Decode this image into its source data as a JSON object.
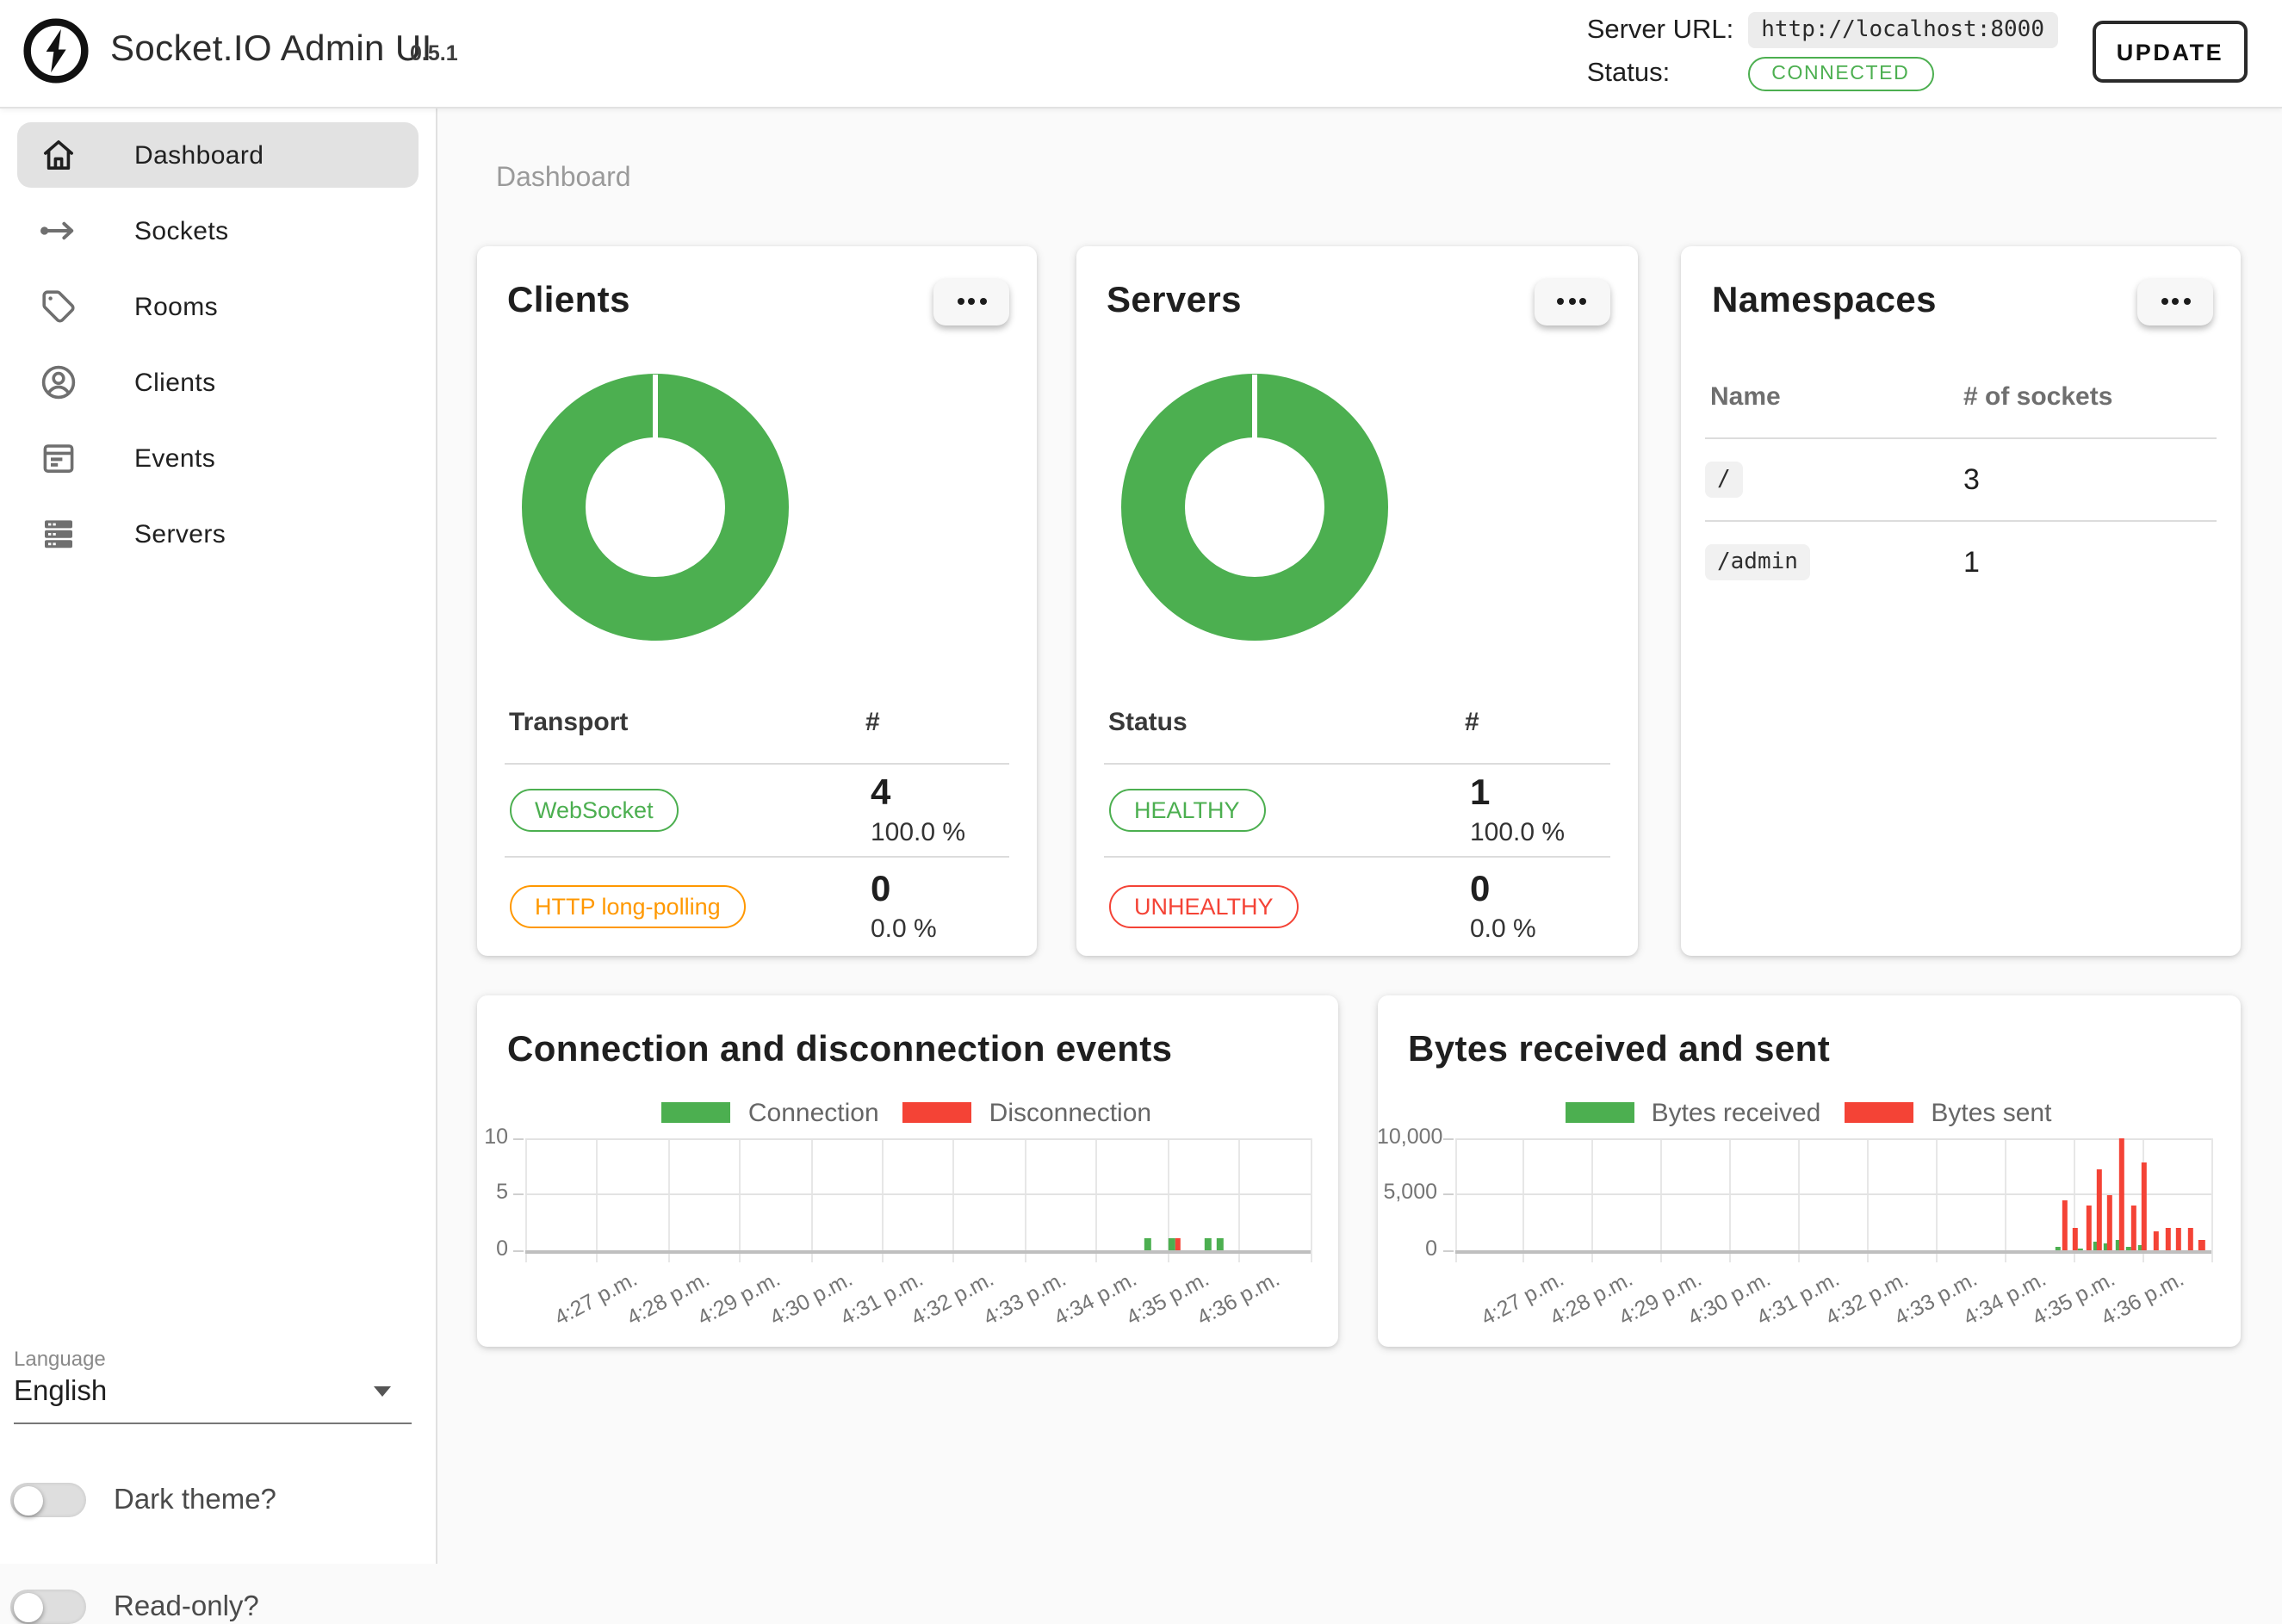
{
  "header": {
    "app_title": "Socket.IO Admin UI",
    "version": "0.5.1",
    "server_url_label": "Server URL:",
    "server_url": "http://localhost:8000",
    "status_label": "Status:",
    "status_value": "CONNECTED",
    "update_button": "UPDATE"
  },
  "sidebar": {
    "items": [
      {
        "label": "Dashboard",
        "icon": "home-icon",
        "active": true
      },
      {
        "label": "Sockets",
        "icon": "socket-arrow-icon",
        "active": false
      },
      {
        "label": "Rooms",
        "icon": "tag-icon",
        "active": false
      },
      {
        "label": "Clients",
        "icon": "person-circle-icon",
        "active": false
      },
      {
        "label": "Events",
        "icon": "calendar-icon",
        "active": false
      },
      {
        "label": "Servers",
        "icon": "server-stack-icon",
        "active": false
      }
    ],
    "language_label": "Language",
    "language_value": "English",
    "dark_theme_label": "Dark theme?",
    "read_only_label": "Read-only?"
  },
  "main": {
    "breadcrumb": "Dashboard"
  },
  "cards": {
    "clients": {
      "title": "Clients",
      "columns": [
        "Transport",
        "#"
      ],
      "rows": [
        {
          "badge": "WebSocket",
          "badge_color": "#4caf50",
          "count": "4",
          "percent": "100.0 %"
        },
        {
          "badge": "HTTP long-polling",
          "badge_color": "#ff9800",
          "count": "0",
          "percent": "0.0 %"
        }
      ]
    },
    "servers": {
      "title": "Servers",
      "columns": [
        "Status",
        "#"
      ],
      "rows": [
        {
          "badge": "HEALTHY",
          "badge_color": "#4caf50",
          "count": "1",
          "percent": "100.0 %"
        },
        {
          "badge": "UNHEALTHY",
          "badge_color": "#f44336",
          "count": "0",
          "percent": "0.0 %"
        }
      ]
    },
    "namespaces": {
      "title": "Namespaces",
      "columns": [
        "Name",
        "# of sockets"
      ],
      "rows": [
        {
          "name": "/",
          "count": "3"
        },
        {
          "name": "/admin",
          "count": "1"
        }
      ]
    }
  },
  "chart_data": [
    {
      "type": "pie",
      "subtype": "donut",
      "title": "Clients",
      "series": [
        {
          "name": "WebSocket",
          "value": 4,
          "percent": 100.0,
          "color": "#4caf50"
        },
        {
          "name": "HTTP long-polling",
          "value": 0,
          "percent": 0.0,
          "color": "#ff9800"
        }
      ]
    },
    {
      "type": "pie",
      "subtype": "donut",
      "title": "Servers",
      "series": [
        {
          "name": "HEALTHY",
          "value": 1,
          "percent": 100.0,
          "color": "#4caf50"
        },
        {
          "name": "UNHEALTHY",
          "value": 0,
          "percent": 0.0,
          "color": "#f44336"
        }
      ]
    },
    {
      "type": "bar",
      "title": "Connection and disconnection events",
      "legend": [
        {
          "label": "Connection",
          "color": "#4caf50"
        },
        {
          "label": "Disconnection",
          "color": "#f44336"
        }
      ],
      "ylim": [
        0,
        10
      ],
      "yticks": [
        {
          "value": 0,
          "label": "0"
        },
        {
          "value": 5,
          "label": "5"
        },
        {
          "value": 10,
          "label": "10"
        }
      ],
      "x_labels": [
        "4:27 p.m.",
        "4:28 p.m.",
        "4:29 p.m.",
        "4:30 p.m.",
        "4:31 p.m.",
        "4:32 p.m.",
        "4:33 p.m.",
        "4:34 p.m.",
        "4:35 p.m.",
        "4:36 p.m."
      ],
      "grid": true,
      "legend_position": "top",
      "bars": [
        {
          "series": "Connection",
          "time": "~4:34:50",
          "value": 1,
          "frac": 0.7934
        },
        {
          "series": "Connection",
          "time": "~4:35:10",
          "value": 1,
          "frac": 0.8242
        },
        {
          "series": "Disconnection",
          "time": "~4:35:15",
          "value": 1,
          "frac": 0.8319
        },
        {
          "series": "Connection",
          "time": "~4:35:40",
          "value": 1,
          "frac": 0.8703
        },
        {
          "series": "Connection",
          "time": "~4:35:50",
          "value": 1,
          "frac": 0.8857
        }
      ]
    },
    {
      "type": "bar",
      "title": "Bytes received and sent",
      "legend": [
        {
          "label": "Bytes received",
          "color": "#4caf50"
        },
        {
          "label": "Bytes sent",
          "color": "#f44336"
        }
      ],
      "ylim": [
        0,
        10000
      ],
      "yticks": [
        {
          "value": 0,
          "label": "0"
        },
        {
          "value": 5000,
          "label": "5,000"
        },
        {
          "value": 10000,
          "label": "10,000"
        }
      ],
      "x_labels": [
        "4:27 p.m.",
        "4:28 p.m.",
        "4:29 p.m.",
        "4:30 p.m.",
        "4:31 p.m.",
        "4:32 p.m.",
        "4:33 p.m.",
        "4:34 p.m.",
        "4:35 p.m.",
        "4:36 p.m."
      ],
      "grid": true,
      "legend_position": "top",
      "bars": [
        {
          "series": "Bytes received",
          "time": "~4:34:50",
          "value": 200,
          "frac": 0.7975
        },
        {
          "series": "Bytes sent",
          "time": "~4:34:50",
          "value": 4400,
          "frac": 0.8066
        },
        {
          "series": "Bytes sent",
          "time": "~4:35:00",
          "value": 2000,
          "frac": 0.8214
        },
        {
          "series": "Bytes received",
          "time": "~4:35:10",
          "value": 150,
          "frac": 0.8282
        },
        {
          "series": "Bytes sent",
          "time": "~4:35:10",
          "value": 3900,
          "frac": 0.8385
        },
        {
          "series": "Bytes received",
          "time": "~4:35:20",
          "value": 750,
          "frac": 0.8476
        },
        {
          "series": "Bytes sent",
          "time": "~4:35:20",
          "value": 7200,
          "frac": 0.8521
        },
        {
          "series": "Bytes received",
          "time": "~4:35:30",
          "value": 550,
          "frac": 0.8624
        },
        {
          "series": "Bytes sent",
          "time": "~4:35:30",
          "value": 4900,
          "frac": 0.8669
        },
        {
          "series": "Bytes received",
          "time": "~4:35:40",
          "value": 900,
          "frac": 0.8772
        },
        {
          "series": "Bytes sent",
          "time": "~4:35:40",
          "value": 10000,
          "frac": 0.8828
        },
        {
          "series": "Bytes received",
          "time": "~4:35:50",
          "value": 200,
          "frac": 0.8908
        },
        {
          "series": "Bytes sent",
          "time": "~4:35:50",
          "value": 4000,
          "frac": 0.8976
        },
        {
          "series": "Bytes received",
          "time": "~4:36:00",
          "value": 450,
          "frac": 0.9067
        },
        {
          "series": "Bytes sent",
          "time": "~4:36:00",
          "value": 7700,
          "frac": 0.9124
        },
        {
          "series": "Bytes sent",
          "time": "~4:36:10",
          "value": 1600,
          "frac": 0.9283
        },
        {
          "series": "Bytes sent",
          "time": "~4:36:20",
          "value": 2000,
          "frac": 0.9431
        },
        {
          "series": "Bytes sent",
          "time": "~4:36:30",
          "value": 2000,
          "frac": 0.9579
        },
        {
          "series": "Bytes sent",
          "time": "~4:36:40",
          "value": 2000,
          "frac": 0.9727
        },
        {
          "series": "Bytes sent",
          "time": "~4:36:50",
          "value": 800,
          "frac": 0.9886
        }
      ]
    }
  ],
  "colors": {
    "green": "#4caf50",
    "red": "#f44336",
    "orange": "#ff9800",
    "accent_dark": "#212121"
  }
}
